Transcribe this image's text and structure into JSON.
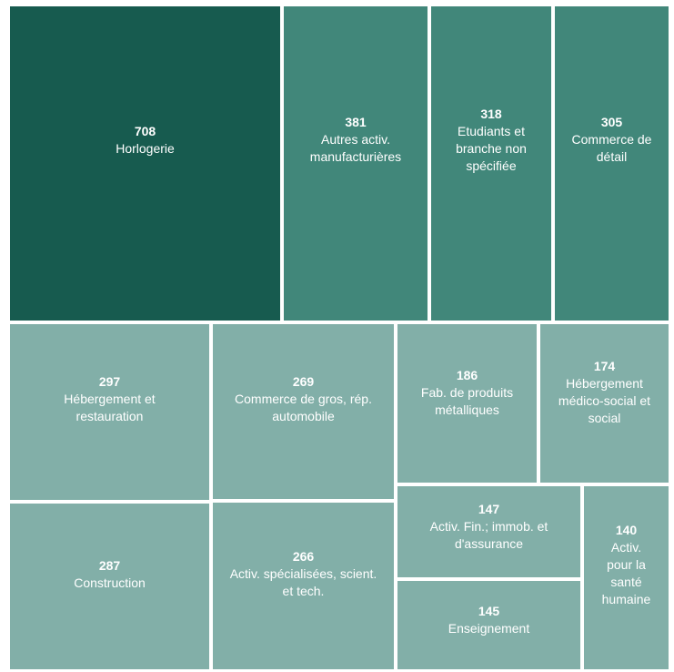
{
  "chart_data": {
    "type": "treemap",
    "items": [
      {
        "label": "Horlogerie",
        "label_lines": [
          "Horlogerie"
        ],
        "value": 708,
        "color": "#175b4f"
      },
      {
        "label": "Autres activ. manufacturières",
        "label_lines": [
          "Autres activ.",
          "manufacturières"
        ],
        "value": 381,
        "color": "#41877a"
      },
      {
        "label": "Etudiants et branche non spécifiée",
        "label_lines": [
          "Etudiants et",
          "branche non",
          "spécifiée"
        ],
        "value": 318,
        "color": "#41877a"
      },
      {
        "label": "Commerce de détail",
        "label_lines": [
          "Commerce de",
          "détail"
        ],
        "value": 305,
        "color": "#41877a"
      },
      {
        "label": "Hébergement et restauration",
        "label_lines": [
          "Hébergement et",
          "restauration"
        ],
        "value": 297,
        "color": "#82afa8"
      },
      {
        "label": "Commerce de gros, rép. automobile",
        "label_lines": [
          "Commerce de gros, rép.",
          "automobile"
        ],
        "value": 269,
        "color": "#82afa8"
      },
      {
        "label": "Fab. de produits métalliques",
        "label_lines": [
          "Fab. de produits",
          "métalliques"
        ],
        "value": 186,
        "color": "#82afa8"
      },
      {
        "label": "Hébergement médico-social et social",
        "label_lines": [
          "Hébergement",
          "médico-social et",
          "social"
        ],
        "value": 174,
        "color": "#82afa8"
      },
      {
        "label": "Construction",
        "label_lines": [
          "Construction"
        ],
        "value": 287,
        "color": "#82afa8"
      },
      {
        "label": "Activ. spécialisées, scient. et tech.",
        "label_lines": [
          "Activ. spécialisées, scient.",
          "et tech."
        ],
        "value": 266,
        "color": "#82afa8"
      },
      {
        "label": "Activ. Fin.; immob. et d'assurance",
        "label_lines": [
          "Activ. Fin.; immob. et",
          "d'assurance"
        ],
        "value": 147,
        "color": "#82afa8"
      },
      {
        "label": "Activ. pour la santé humaine",
        "label_lines": [
          "Activ.",
          "pour la",
          "santé",
          "humaine"
        ],
        "value": 140,
        "color": "#82afa8"
      },
      {
        "label": "Enseignement",
        "label_lines": [
          "Enseignement"
        ],
        "value": 145,
        "color": "#82afa8"
      }
    ]
  }
}
